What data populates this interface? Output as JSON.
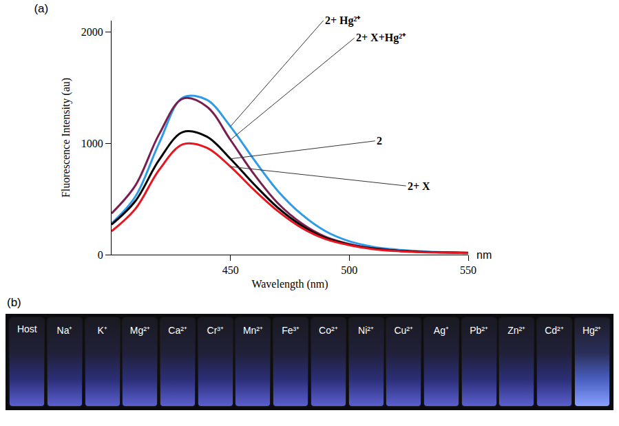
{
  "chart_data": {
    "type": "line",
    "title": "(a)",
    "x_label": "Wavelength (nm)",
    "y_label": "Fluorescence Intensity (au)",
    "x": [
      400,
      410,
      420,
      430,
      440,
      450,
      460,
      470,
      480,
      490,
      500,
      510,
      520,
      530,
      540,
      550
    ],
    "series": [
      {
        "name": "2+ Hg²⁺",
        "color": "#2f9be8",
        "values": [
          280,
          520,
          1000,
          1410,
          1390,
          1150,
          850,
          570,
          360,
          210,
          120,
          70,
          45,
          30,
          22,
          18
        ]
      },
      {
        "name": "2+ X+Hg²⁺",
        "color": "#7a1e4e",
        "values": [
          370,
          620,
          1080,
          1400,
          1330,
          1030,
          720,
          460,
          280,
          160,
          95,
          55,
          35,
          25,
          20,
          15
        ]
      },
      {
        "name": "2",
        "color": "#000000",
        "values": [
          270,
          480,
          850,
          1100,
          1060,
          860,
          630,
          420,
          260,
          150,
          90,
          55,
          35,
          25,
          20,
          15
        ]
      },
      {
        "name": "2+ X",
        "color": "#e8141e",
        "values": [
          210,
          410,
          760,
          990,
          960,
          790,
          580,
          390,
          240,
          140,
          85,
          50,
          32,
          22,
          18,
          14
        ]
      }
    ],
    "xlim": [
      400,
      550
    ],
    "xticks": [
      450,
      500,
      550
    ],
    "ylim": [
      0,
      2100
    ],
    "yticks": [
      0,
      1000,
      2000
    ],
    "grid": false,
    "line_style": "solid",
    "annotations": [
      {
        "text": "2+ Hg²⁺",
        "series": "2+ Hg²⁺"
      },
      {
        "text": "2+ X+Hg²⁺",
        "series": "2+ X+Hg²⁺"
      },
      {
        "text": "2",
        "series": "2"
      },
      {
        "text": "2+ X",
        "series": "2+ X"
      },
      {
        "text": "nm"
      }
    ]
  },
  "photo": {
    "panel": "(b)",
    "labels": [
      "Host",
      "Na⁺",
      "K⁺",
      "Mg²⁺",
      "Ca²⁺",
      "Cr³⁺",
      "Mn²⁺",
      "Fe³⁺",
      "Co²⁺",
      "Ni²⁺",
      "Cu²⁺",
      "Ag⁺",
      "Pb²⁺",
      "Zn²⁺",
      "Cd²⁺",
      "Hg²⁺"
    ]
  }
}
